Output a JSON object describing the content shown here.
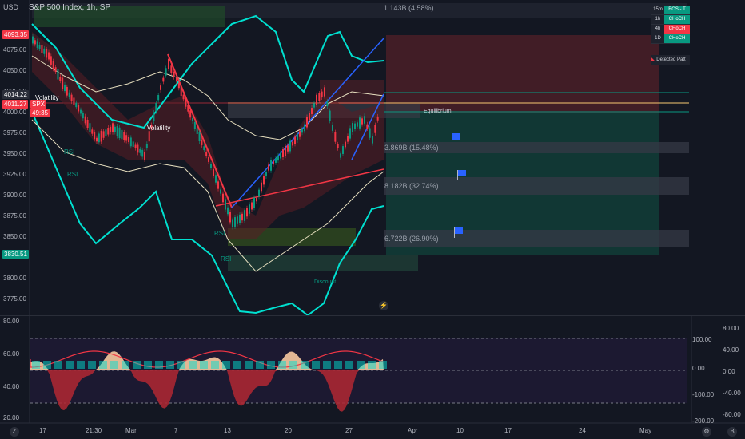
{
  "chart_title": "S&P 500 Index, 1h, SP",
  "currency": "USD",
  "price_tags": [
    {
      "text": "4093.35",
      "color": "#f23645"
    },
    {
      "text": "4014.22",
      "color": "#2a2e39"
    },
    {
      "text": "4011.27",
      "color": "#f23645"
    },
    {
      "text": "SPX",
      "color": "#f23645"
    },
    {
      "text": "49:35",
      "color": "#f23645"
    },
    {
      "text": "3830.51",
      "color": "#089981"
    }
  ],
  "price_axis": [
    "4075.00",
    "4050.00",
    "4025.00",
    "4000.00",
    "3975.00",
    "3950.00",
    "3925.00",
    "3900.00",
    "3875.00",
    "3850.00",
    "3825.00",
    "3800.00",
    "3775.00"
  ],
  "time_axis": [
    "17",
    "21:30",
    "Mar",
    "7",
    "13",
    "20",
    "27",
    "Apr",
    "10",
    "17",
    "24",
    "May"
  ],
  "zones": {
    "top_volume": "1.143B (4.58%)",
    "equilibrium": "Equilibrium",
    "zone1": "3.869B (15.48%)",
    "zone2": "8.182B (32.74%)",
    "zone3": "6.722B (26.90%)",
    "discount": "Discount"
  },
  "chart_labels": {
    "volatility1": "Volatility",
    "volatility2": "Volatility",
    "rsi1": "RSI",
    "rsi2": "RSI",
    "rsi3": "RSI",
    "rsi4": "RSI"
  },
  "tf_table": [
    {
      "tf": "15m",
      "value": "BOS - T",
      "color": "#089981"
    },
    {
      "tf": "1h",
      "value": "CHoCH",
      "color": "#089981"
    },
    {
      "tf": "4h",
      "value": "CHoCH",
      "color": "#f23645"
    },
    {
      "tf": "1D",
      "value": "CHoCH",
      "color": "#089981"
    }
  ],
  "detected_label": "Detected Patt",
  "osc_left_axis": [
    "80.00",
    "60.00",
    "40.00",
    "20.00"
  ],
  "osc_right_axis_a": [
    "100.00",
    "0.00",
    "-100.00",
    "-200.00"
  ],
  "osc_right_axis_b": [
    "80.00",
    "40.00",
    "0.00",
    "-40.00",
    "-80.00"
  ],
  "bottom_icons": {
    "left": "Z",
    "right_a": "⚙",
    "right_b": "B"
  },
  "colors": {
    "bg": "#131722",
    "bull": "#089981",
    "bear": "#f23645",
    "cyan": "#00e0d0",
    "blue": "#2962ff"
  }
}
